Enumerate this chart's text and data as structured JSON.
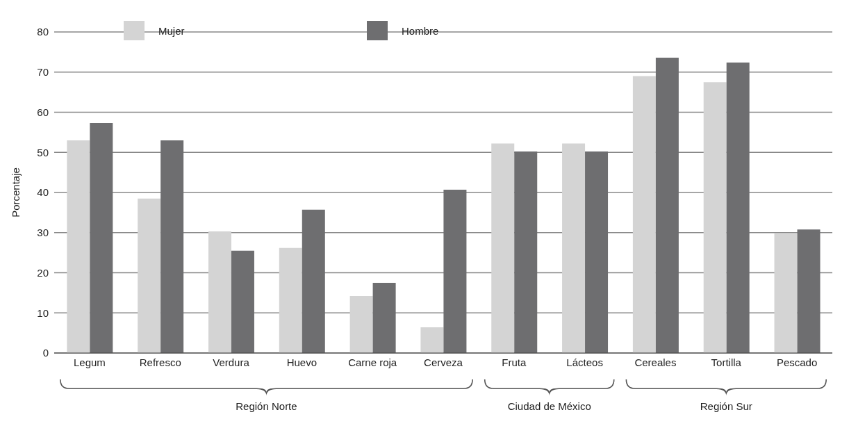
{
  "chart_data": {
    "type": "bar",
    "ylabel": "Porcentaje",
    "categories": [
      "Legum",
      "Refresco",
      "Verdura",
      "Huevo",
      "Carne roja",
      "Cerveza",
      "Fruta",
      "Lácteos",
      "Cereales",
      "Tortilla",
      "Pescado"
    ],
    "series": [
      {
        "name": "Mujer",
        "color": "#d4d4d4",
        "values": [
          53,
          38.5,
          30.3,
          26.2,
          14.2,
          6.4,
          52.2,
          52.2,
          69,
          67.5,
          29.8
        ]
      },
      {
        "name": "Hombre",
        "color": "#6e6e70",
        "values": [
          57.3,
          53,
          25.5,
          35.7,
          17.5,
          40.7,
          50.2,
          50.2,
          73.6,
          72.4,
          30.8
        ]
      }
    ],
    "ylim": [
      0,
      80
    ],
    "yticks": [
      0,
      10,
      20,
      30,
      40,
      50,
      60,
      70,
      80
    ],
    "grid": "y",
    "legend": "top left",
    "annotations": [
      "Región Norte",
      "Ciudad de México",
      "Región Sur"
    ]
  }
}
